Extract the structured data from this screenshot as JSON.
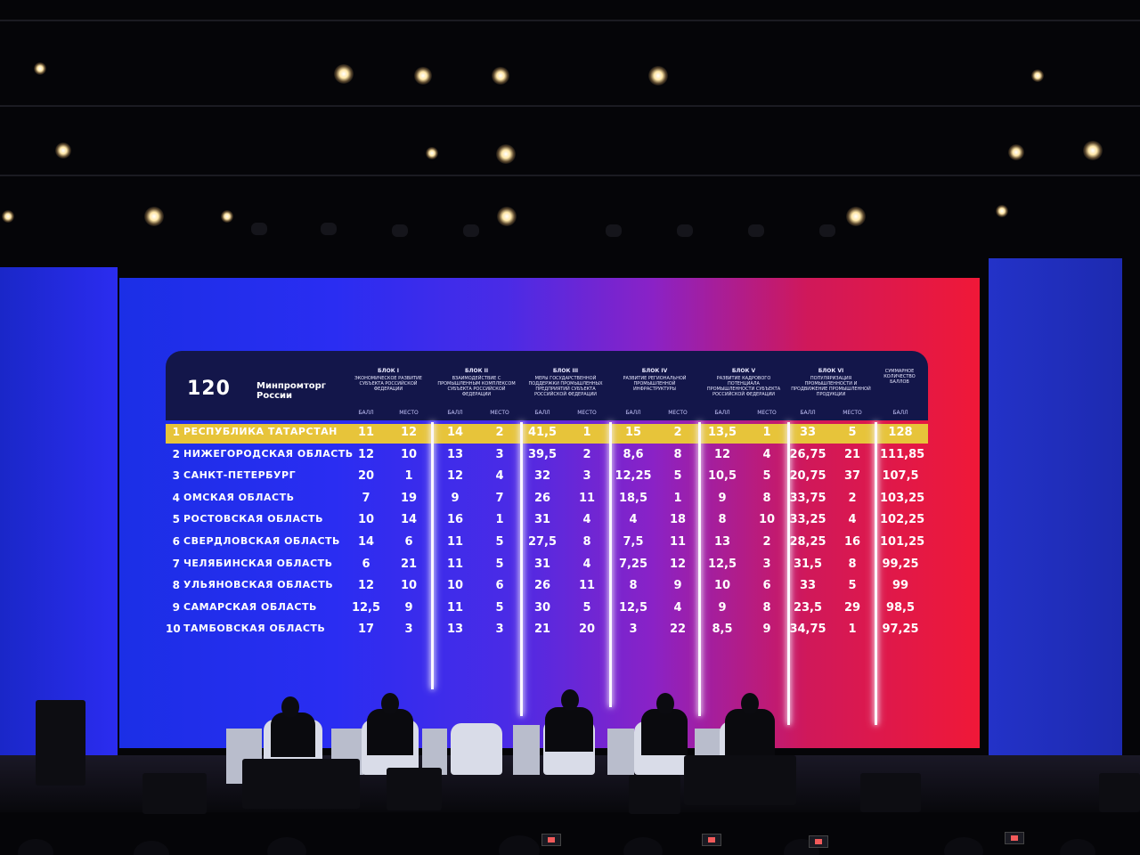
{
  "logo": {
    "number": "120",
    "name": "Минпромторг России"
  },
  "blocks": [
    {
      "title": "БЛОК I",
      "desc": "ЭКОНОМИЧЕСКОЕ РАЗВИТИЕ СУБЪЕКТА РОССИЙСКОЙ ФЕДЕРАЦИИ"
    },
    {
      "title": "БЛОК II",
      "desc": "ВЗАИМОДЕЙСТВИЕ С ПРОМЫШЛЕННЫМ КОМПЛЕКСОМ СУБЪЕКТА РОССИЙСКОЙ ФЕДЕРАЦИИ"
    },
    {
      "title": "БЛОК III",
      "desc": "МЕРЫ ГОСУДАРСТВЕННОЙ ПОДДЕРЖКИ ПРОМЫШЛЕННЫХ ПРЕДПРИЯТИЙ СУБЪЕКТА РОССИЙСКОЙ ФЕДЕРАЦИИ"
    },
    {
      "title": "БЛОК IV",
      "desc": "РАЗВИТИЕ РЕГИОНАЛЬНОЙ ПРОМЫШЛЕННОЙ ИНФРАСТРУКТУРЫ"
    },
    {
      "title": "БЛОК V",
      "desc": "РАЗВИТИЕ КАДРОВОГО ПОТЕНЦИАЛА ПРОМЫШЛЕННОСТИ СУБЪЕКТА РОССИЙСКОЙ ФЕДЕРАЦИИ"
    },
    {
      "title": "БЛОК VI",
      "desc": "ПОПУЛЯРИЗАЦИЯ ПРОМЫШЛЕННОСТИ И ПРОДВИЖЕНИЕ ПРОМЫШЛЕННОЙ ПРОДУКЦИИ"
    },
    {
      "title": "",
      "desc": "СУММАРНОЕ КОЛИЧЕСТВО БАЛЛОВ"
    }
  ],
  "sub_labels": {
    "score": "БАЛЛ",
    "place": "МЕСТО"
  },
  "rows": [
    {
      "rank": "1",
      "region": "РЕСПУБЛИКА ТАТАРСТАН",
      "values": [
        "11",
        "12",
        "14",
        "2",
        "41,5",
        "1",
        "15",
        "2",
        "13,5",
        "1",
        "33",
        "5",
        "128"
      ]
    },
    {
      "rank": "2",
      "region": "НИЖЕГОРОДСКАЯ ОБЛАСТЬ",
      "values": [
        "12",
        "10",
        "13",
        "3",
        "39,5",
        "2",
        "8,6",
        "8",
        "12",
        "4",
        "26,75",
        "21",
        "111,85"
      ]
    },
    {
      "rank": "3",
      "region": "САНКТ-ПЕТЕРБУРГ",
      "values": [
        "20",
        "1",
        "12",
        "4",
        "32",
        "3",
        "12,25",
        "5",
        "10,5",
        "5",
        "20,75",
        "37",
        "107,5"
      ]
    },
    {
      "rank": "4",
      "region": "ОМСКАЯ ОБЛАСТЬ",
      "values": [
        "7",
        "19",
        "9",
        "7",
        "26",
        "11",
        "18,5",
        "1",
        "9",
        "8",
        "33,75",
        "2",
        "103,25"
      ]
    },
    {
      "rank": "5",
      "region": "РОСТОВСКАЯ ОБЛАСТЬ",
      "values": [
        "10",
        "14",
        "16",
        "1",
        "31",
        "4",
        "4",
        "18",
        "8",
        "10",
        "33,25",
        "4",
        "102,25"
      ]
    },
    {
      "rank": "6",
      "region": "СВЕРДЛОВСКАЯ ОБЛАСТЬ",
      "values": [
        "14",
        "6",
        "11",
        "5",
        "27,5",
        "8",
        "7,5",
        "11",
        "13",
        "2",
        "28,25",
        "16",
        "101,25"
      ]
    },
    {
      "rank": "7",
      "region": "ЧЕЛЯБИНСКАЯ ОБЛАСТЬ",
      "values": [
        "6",
        "21",
        "11",
        "5",
        "31",
        "4",
        "7,25",
        "12",
        "12,5",
        "3",
        "31,5",
        "8",
        "99,25"
      ]
    },
    {
      "rank": "8",
      "region": "УЛЬЯНОВСКАЯ ОБЛАСТЬ",
      "values": [
        "12",
        "10",
        "10",
        "6",
        "26",
        "11",
        "8",
        "9",
        "10",
        "6",
        "33",
        "5",
        "99"
      ]
    },
    {
      "rank": "9",
      "region": "САМАРСКАЯ ОБЛАСТЬ",
      "values": [
        "12,5",
        "9",
        "11",
        "5",
        "30",
        "5",
        "12,5",
        "4",
        "9",
        "8",
        "23,5",
        "29",
        "98,5"
      ]
    },
    {
      "rank": "10",
      "region": "ТАМБОВСКАЯ ОБЛАСТЬ",
      "values": [
        "17",
        "3",
        "13",
        "3",
        "21",
        "20",
        "3",
        "22",
        "8,5",
        "9",
        "34,75",
        "1",
        "97,25"
      ]
    }
  ],
  "colors": {
    "highlight": "#e7c43a",
    "screen_left": "#1b2fe6",
    "screen_right": "#f01838"
  }
}
